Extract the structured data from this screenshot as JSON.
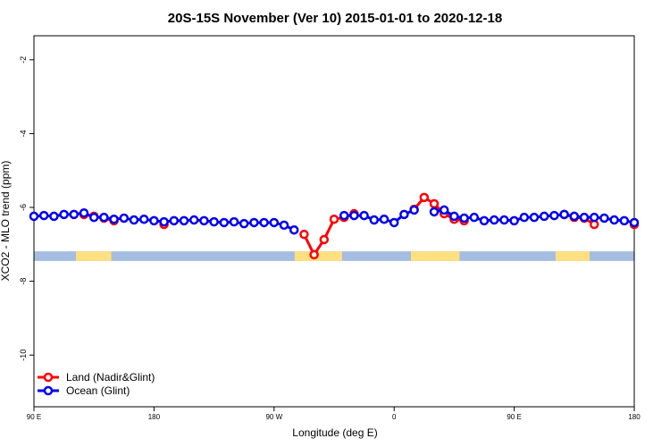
{
  "chart_data": {
    "type": "line",
    "title": "20S-15S November (Ver 10)   2015-01-01 to 2020-12-18",
    "xlabel": "Longitude (deg E)",
    "ylabel": "XCO2 - MLO trend (ppm)",
    "xlim": [
      90,
      540
    ],
    "ylim": [
      -11.4,
      -1.35
    ],
    "xticks": [
      {
        "value": 90,
        "label": "90 E"
      },
      180,
      {
        "value": 270,
        "label": "90 W"
      },
      {
        "value": 360,
        "label": "0"
      },
      {
        "value": 450,
        "label": "90 E"
      },
      {
        "value": 540,
        "label": "180"
      }
    ],
    "yticks": [
      -10,
      -8,
      -6,
      -4,
      -2
    ],
    "legend": "lower left",
    "x": [
      90,
      97.5,
      105,
      112.5,
      120,
      127.5,
      135,
      142.5,
      150,
      157.5,
      165,
      172.5,
      180,
      187.5,
      195,
      202.5,
      210,
      217.5,
      225,
      232.5,
      240,
      247.5,
      255,
      262.5,
      270,
      277.5,
      285,
      292.5,
      300,
      307.5,
      315,
      322.5,
      330,
      337.5,
      345,
      352.5,
      360,
      367.5,
      375,
      382.5,
      390,
      397.5,
      405,
      412.5,
      420,
      427.5,
      435,
      442.5,
      450,
      457.5,
      465,
      472.5,
      480,
      487.5,
      495,
      502.5,
      510,
      517.5,
      525,
      532.5,
      540
    ],
    "series": [
      {
        "name": "Land (Nadir&Glint)",
        "color": "#ff0000",
        "values": [
          null,
          null,
          null,
          null,
          null,
          -6.19,
          -6.24,
          -6.29,
          -6.36,
          null,
          null,
          null,
          null,
          -6.46,
          null,
          null,
          null,
          null,
          null,
          null,
          null,
          null,
          null,
          null,
          null,
          null,
          null,
          -6.73,
          -7.28,
          -6.87,
          -6.32,
          -6.27,
          -6.17,
          null,
          null,
          null,
          null,
          null,
          -6.05,
          -5.73,
          -5.9,
          -6.17,
          -6.32,
          -6.36,
          null,
          null,
          null,
          null,
          null,
          null,
          null,
          null,
          null,
          -6.19,
          -6.27,
          -6.29,
          -6.46,
          null,
          null,
          null,
          -6.46
        ]
      },
      {
        "name": "Ocean (Glint)",
        "color": "#0000ee",
        "values": [
          -6.24,
          -6.22,
          -6.24,
          -6.19,
          -6.19,
          -6.15,
          -6.27,
          -6.27,
          -6.32,
          -6.29,
          -6.34,
          -6.32,
          -6.36,
          -6.39,
          -6.36,
          -6.36,
          -6.34,
          -6.36,
          -6.39,
          -6.41,
          -6.39,
          -6.44,
          -6.41,
          -6.41,
          -6.41,
          -6.48,
          -6.61,
          null,
          null,
          null,
          null,
          -6.22,
          -6.22,
          -6.22,
          -6.34,
          -6.32,
          -6.41,
          -6.19,
          -6.07,
          null,
          -6.12,
          -6.07,
          -6.24,
          -6.29,
          -6.27,
          -6.36,
          -6.34,
          -6.34,
          -6.36,
          -6.27,
          -6.27,
          -6.24,
          -6.22,
          -6.19,
          -6.24,
          -6.27,
          -6.27,
          -6.29,
          -6.34,
          -6.36,
          -6.41
        ]
      }
    ],
    "mask_band": [
      -7.45,
      -7.19
    ],
    "mask_ocean_color": "#a4bde0",
    "mask_land_color": "#ffe080",
    "land_ranges": [
      [
        121.5,
        148
      ],
      [
        285.5,
        321
      ],
      [
        372.6,
        409
      ],
      [
        481,
        506.5
      ]
    ]
  }
}
